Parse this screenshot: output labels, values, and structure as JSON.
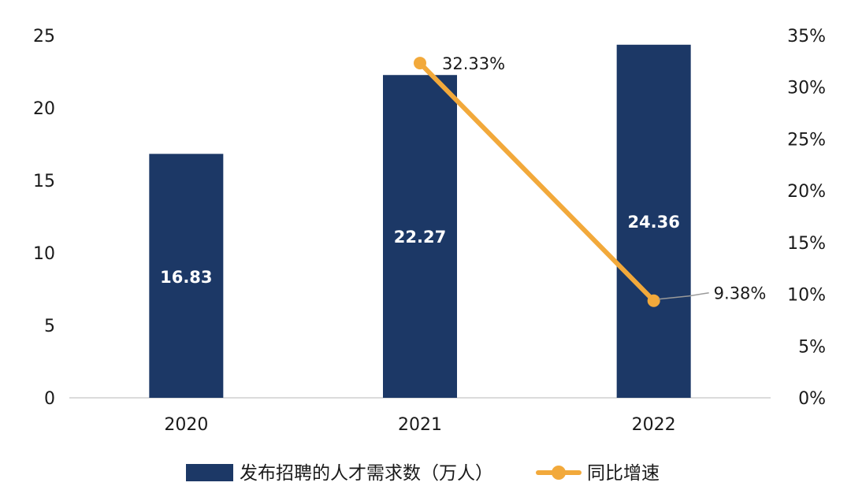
{
  "chart_data": {
    "type": "bar+line",
    "categories": [
      "2020",
      "2021",
      "2022"
    ],
    "series": [
      {
        "name": "发布招聘的人才需求数（万人）",
        "type": "bar",
        "axis": "left",
        "values": [
          16.83,
          22.27,
          24.36
        ],
        "labels": [
          "16.83",
          "22.27",
          "24.36"
        ],
        "color": "#1c3866"
      },
      {
        "name": "同比增速",
        "type": "line",
        "axis": "right",
        "x": [
          "2021",
          "2022"
        ],
        "values": [
          32.33,
          9.38
        ],
        "labels": [
          "32.33%",
          "9.38%"
        ],
        "color": "#f2a93b"
      }
    ],
    "y_left": {
      "ticks": [
        "0",
        "5",
        "10",
        "15",
        "20",
        "25"
      ],
      "range": [
        0,
        25
      ]
    },
    "y_right": {
      "ticks": [
        "0%",
        "5%",
        "10%",
        "15%",
        "20%",
        "25%",
        "30%",
        "35%"
      ],
      "range": [
        0,
        35
      ]
    },
    "legend": {
      "position": "bottom"
    },
    "grid": false
  }
}
